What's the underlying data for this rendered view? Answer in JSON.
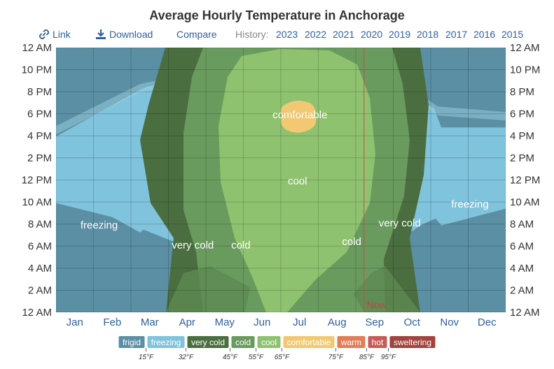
{
  "title": "Average Hourly Temperature in Anchorage",
  "toolbar": {
    "link": "Link",
    "download": "Download",
    "compare": "Compare",
    "history_label": "History:",
    "years": [
      "2023",
      "2022",
      "2021",
      "2020",
      "2019",
      "2018",
      "2017",
      "2016",
      "2015"
    ]
  },
  "chart_data": {
    "type": "heatmap",
    "title": "Average Hourly Temperature in Anchorage",
    "x_categories": [
      "Jan",
      "Feb",
      "Mar",
      "Apr",
      "May",
      "Jun",
      "Jul",
      "Aug",
      "Sep",
      "Oct",
      "Nov",
      "Dec"
    ],
    "y_ticks": [
      "12 AM",
      "2 AM",
      "4 AM",
      "6 AM",
      "8 AM",
      "10 AM",
      "12 PM",
      "2 PM",
      "4 PM",
      "6 PM",
      "8 PM",
      "10 PM",
      "12 AM"
    ],
    "now_marker": {
      "label": "Now",
      "day_of_year": 250
    },
    "band_labels": [
      {
        "text": "freezing",
        "day": 35,
        "hour": 7.9
      },
      {
        "text": "very cold",
        "day": 111,
        "hour": 6.1
      },
      {
        "text": "cold",
        "day": 150,
        "hour": 6.1
      },
      {
        "text": "cool",
        "day": 196,
        "hour": 11.9
      },
      {
        "text": "comfortable",
        "day": 198,
        "hour": 17.9
      },
      {
        "text": "cold",
        "day": 240,
        "hour": 6.4
      },
      {
        "text": "very cold",
        "day": 279,
        "hour": 8.1
      },
      {
        "text": "freezing",
        "day": 336,
        "hour": 9.8
      }
    ],
    "legend": [
      {
        "label": "frigid",
        "color": "#5b8fa3"
      },
      {
        "label": "freezing",
        "color": "#7fc3dc"
      },
      {
        "label": "very cold",
        "color": "#4a6e3f"
      },
      {
        "label": "cold",
        "color": "#6a9b5e"
      },
      {
        "label": "cool",
        "color": "#8fc26f"
      },
      {
        "label": "comfortable",
        "color": "#f2c872"
      },
      {
        "label": "warm",
        "color": "#e07e57"
      },
      {
        "label": "hot",
        "color": "#c65c57"
      },
      {
        "label": "sweltering",
        "color": "#a0443d"
      }
    ],
    "legend_thresholds": [
      "15°F",
      "32°F",
      "45°F",
      "55°F",
      "65°F",
      "75°F",
      "85°F",
      "95°F"
    ]
  }
}
